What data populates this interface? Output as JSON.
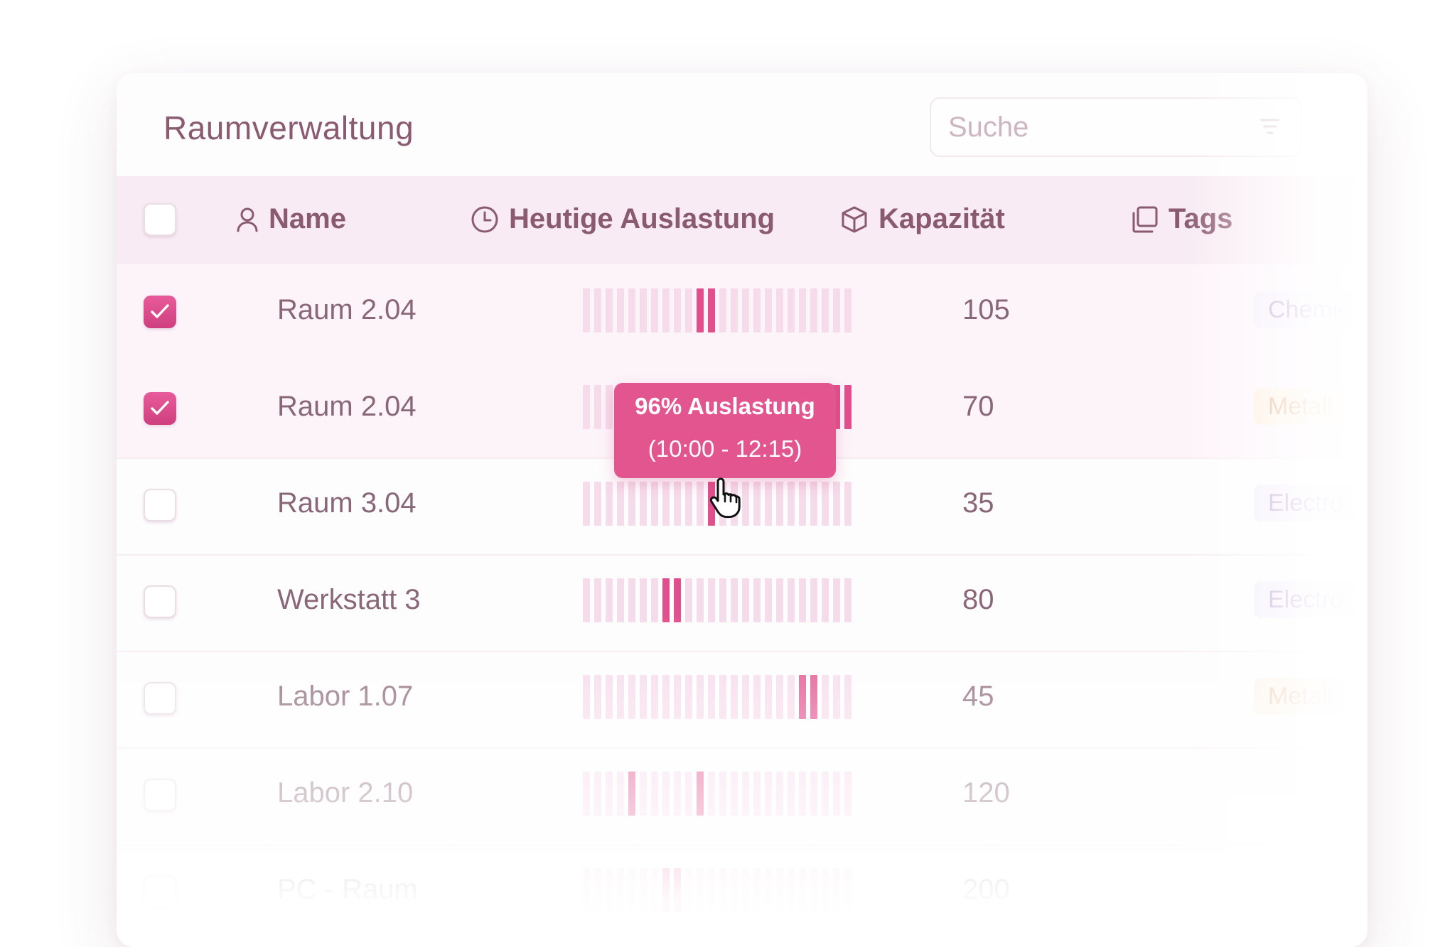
{
  "page_title": "Raumverwaltung",
  "search": {
    "placeholder": "Suche"
  },
  "columns": {
    "name": "Name",
    "utilization": "Heutige Auslastung",
    "capacity": "Kapazität",
    "tags": "Tags"
  },
  "rows": [
    {
      "name": "Raum 2.04",
      "capacity": "105",
      "tag": "Chemie",
      "selected": true,
      "hot_slots": [
        10,
        11
      ]
    },
    {
      "name": "Raum 2.04",
      "capacity": "70",
      "tag": "Metall",
      "selected": true,
      "hot_slots": [
        22,
        23
      ]
    },
    {
      "name": "Raum 3.04",
      "capacity": "35",
      "tag": "Electro",
      "selected": false,
      "hot_slots": [
        11
      ]
    },
    {
      "name": "Werkstatt 3",
      "capacity": "80",
      "tag": "Electro",
      "selected": false,
      "hot_slots": [
        7,
        8
      ]
    },
    {
      "name": "Labor 1.07",
      "capacity": "45",
      "tag": "Metall",
      "selected": false,
      "hot_slots": [
        19,
        20
      ]
    },
    {
      "name": "Labor 2.10",
      "capacity": "120",
      "tag": "",
      "selected": false,
      "hot_slots": [
        4,
        10
      ]
    },
    {
      "name": "PC - Raum",
      "capacity": "200",
      "tag": "",
      "selected": false,
      "hot_slots": [
        7,
        8
      ]
    }
  ],
  "tooltip": {
    "title": "96% Auslastung",
    "time": "(10:00 - 12:15)"
  },
  "colors": {
    "accent": "#e0508c",
    "bar_idle": "#f6dbeb",
    "header_bg": "#f8ebf3",
    "text": "#8a5a70",
    "tag_chemie": "#f3ecfa",
    "tag_metall": "#fdeedd",
    "tag_electro": "#f3ecfa"
  },
  "icons": {
    "name": "user-icon",
    "utilization": "clock-icon",
    "capacity": "cube-icon",
    "tags": "copy-icon"
  }
}
